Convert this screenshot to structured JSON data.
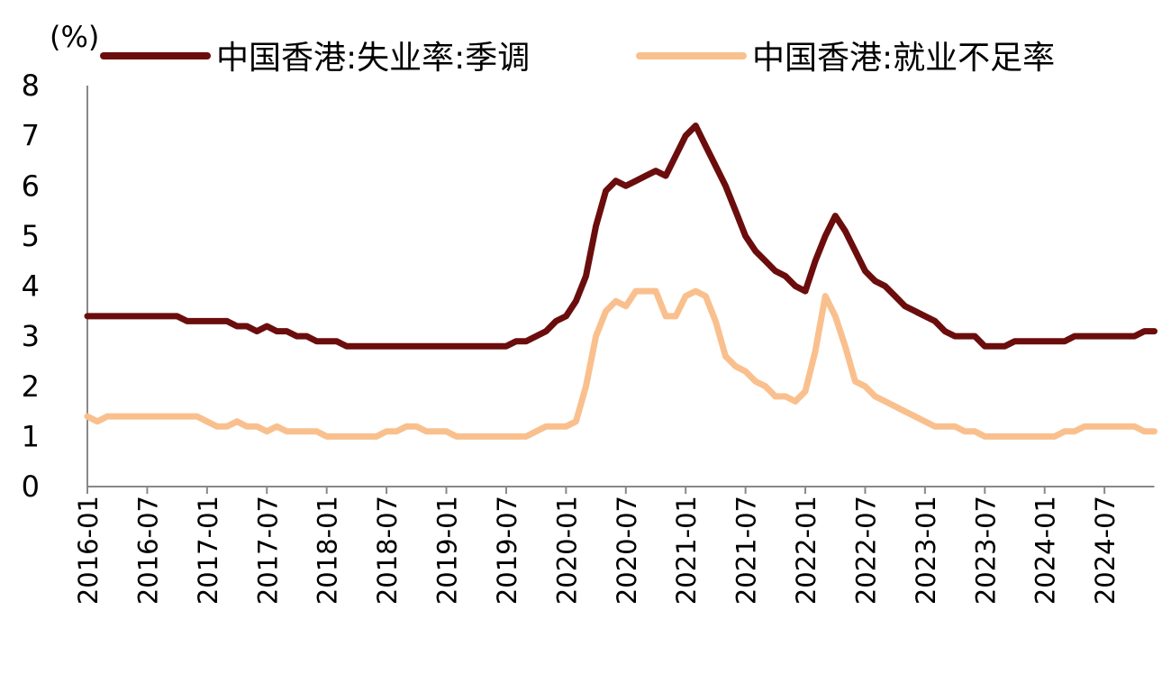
{
  "chart_data": {
    "type": "line",
    "y_label": "(%)",
    "categories": [
      "2016-01",
      null,
      null,
      null,
      null,
      null,
      "2016-07",
      null,
      null,
      null,
      null,
      null,
      "2017-01",
      null,
      null,
      null,
      null,
      null,
      "2017-07",
      null,
      null,
      null,
      null,
      null,
      "2018-01",
      null,
      null,
      null,
      null,
      null,
      "2018-07",
      null,
      null,
      null,
      null,
      null,
      "2019-01",
      null,
      null,
      null,
      null,
      null,
      "2019-07",
      null,
      null,
      null,
      null,
      null,
      "2020-01",
      null,
      null,
      null,
      null,
      null,
      "2020-07",
      null,
      null,
      null,
      null,
      null,
      "2021-01",
      null,
      null,
      null,
      null,
      null,
      "2021-07",
      null,
      null,
      null,
      null,
      null,
      "2022-01",
      null,
      null,
      null,
      null,
      null,
      "2022-07",
      null,
      null,
      null,
      null,
      null,
      "2023-01",
      null,
      null,
      null,
      null,
      null,
      "2023-07",
      null,
      null,
      null,
      null,
      null,
      "2024-01",
      null,
      null,
      null,
      null,
      null,
      "2024-07",
      null,
      null,
      null,
      null,
      null
    ],
    "series": [
      {
        "name": "中国香港:失业率:季调",
        "color": "#6b0d0d",
        "values": [
          3.4,
          3.4,
          3.4,
          3.4,
          3.4,
          3.4,
          3.4,
          3.4,
          3.4,
          3.4,
          3.3,
          3.3,
          3.3,
          3.3,
          3.3,
          3.2,
          3.2,
          3.1,
          3.2,
          3.1,
          3.1,
          3.0,
          3.0,
          2.9,
          2.9,
          2.9,
          2.8,
          2.8,
          2.8,
          2.8,
          2.8,
          2.8,
          2.8,
          2.8,
          2.8,
          2.8,
          2.8,
          2.8,
          2.8,
          2.8,
          2.8,
          2.8,
          2.8,
          2.9,
          2.9,
          3.0,
          3.1,
          3.3,
          3.4,
          3.7,
          4.2,
          5.2,
          5.9,
          6.1,
          6.0,
          6.1,
          6.2,
          6.3,
          6.2,
          6.6,
          7.0,
          7.2,
          6.8,
          6.4,
          6.0,
          5.5,
          5.0,
          4.7,
          4.5,
          4.3,
          4.2,
          4.0,
          3.9,
          4.5,
          5.0,
          5.4,
          5.1,
          4.7,
          4.3,
          4.1,
          4.0,
          3.8,
          3.6,
          3.5,
          3.4,
          3.3,
          3.1,
          3.0,
          3.0,
          3.0,
          2.8,
          2.8,
          2.8,
          2.9,
          2.9,
          2.9,
          2.9,
          2.9,
          2.9,
          3.0,
          3.0,
          3.0,
          3.0,
          3.0,
          3.0,
          3.0,
          3.1,
          3.1
        ]
      },
      {
        "name": "中国香港:就业不足率",
        "color": "#f9c08e",
        "values": [
          1.4,
          1.3,
          1.4,
          1.4,
          1.4,
          1.4,
          1.4,
          1.4,
          1.4,
          1.4,
          1.4,
          1.4,
          1.3,
          1.2,
          1.2,
          1.3,
          1.2,
          1.2,
          1.1,
          1.2,
          1.1,
          1.1,
          1.1,
          1.1,
          1.0,
          1.0,
          1.0,
          1.0,
          1.0,
          1.0,
          1.1,
          1.1,
          1.2,
          1.2,
          1.1,
          1.1,
          1.1,
          1.0,
          1.0,
          1.0,
          1.0,
          1.0,
          1.0,
          1.0,
          1.0,
          1.1,
          1.2,
          1.2,
          1.2,
          1.3,
          2.0,
          3.0,
          3.5,
          3.7,
          3.6,
          3.9,
          3.9,
          3.9,
          3.4,
          3.4,
          3.8,
          3.9,
          3.8,
          3.3,
          2.6,
          2.4,
          2.3,
          2.1,
          2.0,
          1.8,
          1.8,
          1.7,
          1.9,
          2.7,
          3.8,
          3.4,
          2.8,
          2.1,
          2.0,
          1.8,
          1.7,
          1.6,
          1.5,
          1.4,
          1.3,
          1.2,
          1.2,
          1.2,
          1.1,
          1.1,
          1.0,
          1.0,
          1.0,
          1.0,
          1.0,
          1.0,
          1.0,
          1.0,
          1.1,
          1.1,
          1.2,
          1.2,
          1.2,
          1.2,
          1.2,
          1.2,
          1.1,
          1.1
        ]
      }
    ],
    "ylim": [
      0,
      8
    ],
    "yticks": [
      0,
      1,
      2,
      3,
      4,
      5,
      6,
      7,
      8
    ],
    "grid": false,
    "legend": "top"
  }
}
